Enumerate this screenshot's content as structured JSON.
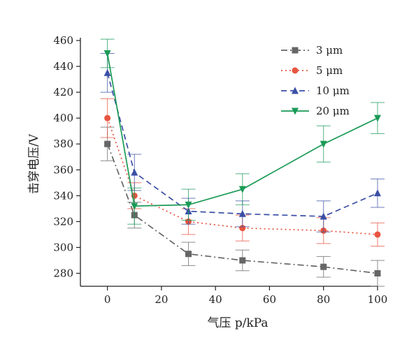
{
  "chart_data": {
    "type": "line",
    "title": "",
    "xlabel": "气压 p/kPa",
    "ylabel": "击穿电压/V",
    "xlim": [
      -10,
      100
    ],
    "ylim": [
      270,
      460
    ],
    "x_ticks": [
      0,
      20,
      40,
      60,
      80,
      100
    ],
    "y_ticks": [
      280,
      300,
      320,
      340,
      360,
      380,
      400,
      420,
      440,
      460
    ],
    "x_tick_labels": [
      "0",
      "20",
      "40",
      "60",
      "80",
      "100"
    ],
    "y_tick_labels": [
      "280",
      "300",
      "320",
      "340",
      "360",
      "380",
      "400",
      "420",
      "440",
      "460"
    ],
    "grid": false,
    "legend_position": "top-right",
    "x": [
      0,
      10,
      30,
      50,
      80,
      100
    ],
    "series": [
      {
        "name": "3 μm",
        "values": [
          380,
          325,
          295,
          290,
          285,
          280
        ],
        "errors": [
          13,
          10,
          9,
          8,
          8,
          10
        ],
        "color": "#666666",
        "dash": "dash-dot",
        "marker": "square"
      },
      {
        "name": "5 μm",
        "values": [
          400,
          340,
          320,
          315,
          313,
          310
        ],
        "errors": [
          15,
          10,
          10,
          10,
          10,
          9
        ],
        "color": "#e8553f",
        "dash": "dot",
        "marker": "circle"
      },
      {
        "name": "10 μm",
        "values": [
          435,
          358,
          328,
          326,
          324,
          342
        ],
        "errors": [
          15,
          14,
          10,
          10,
          12,
          11
        ],
        "color": "#3b4fa6",
        "dash": "dash",
        "marker": "triangle-up"
      },
      {
        "name": "20 μm",
        "values": [
          450,
          332,
          333,
          345,
          380,
          400
        ],
        "errors": [
          11,
          14,
          12,
          12,
          14,
          12
        ],
        "color": "#1a9a56",
        "dash": "solid",
        "marker": "triangle-down"
      }
    ]
  }
}
